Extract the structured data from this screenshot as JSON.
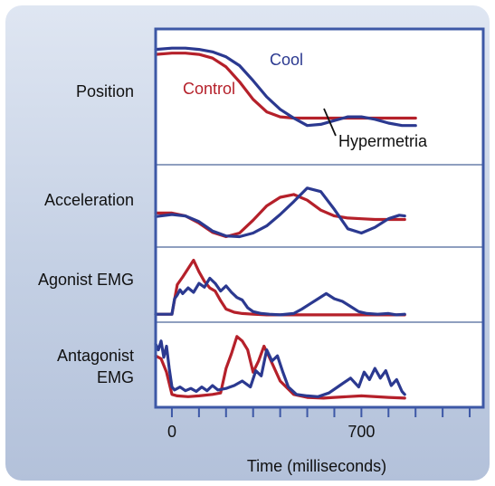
{
  "chart_data": {
    "type": "line",
    "xlabel": "Time (milliseconds)",
    "x_ticks": [
      {
        "value": 0,
        "label": "0"
      },
      {
        "value": 100,
        "label": ""
      },
      {
        "value": 200,
        "label": ""
      },
      {
        "value": 300,
        "label": ""
      },
      {
        "value": 400,
        "label": ""
      },
      {
        "value": 500,
        "label": ""
      },
      {
        "value": 600,
        "label": ""
      },
      {
        "value": 700,
        "label": "700"
      },
      {
        "value": 800,
        "label": ""
      },
      {
        "value": 900,
        "label": ""
      },
      {
        "value": 1000,
        "label": ""
      },
      {
        "value": 1100,
        "label": ""
      }
    ],
    "xlim": [
      -60,
      1150
    ],
    "colors": {
      "cool": "#2b3990",
      "control": "#b5202a"
    },
    "panels": [
      {
        "label": "Position",
        "ylim": [
          0,
          1
        ],
        "series": [
          {
            "key": "control",
            "x": [
              -60,
              0,
              50,
              100,
              150,
              200,
              250,
              300,
              350,
              400,
              450,
              500,
              550,
              600,
              700,
              800,
              900
            ],
            "y": [
              0.84,
              0.85,
              0.85,
              0.84,
              0.81,
              0.74,
              0.62,
              0.48,
              0.38,
              0.34,
              0.33,
              0.33,
              0.33,
              0.33,
              0.33,
              0.33,
              0.33
            ]
          },
          {
            "key": "cool",
            "x": [
              -60,
              0,
              50,
              100,
              150,
              200,
              250,
              300,
              350,
              400,
              450,
              500,
              550,
              600,
              650,
              700,
              750,
              800,
              850,
              900
            ],
            "y": [
              0.88,
              0.89,
              0.89,
              0.88,
              0.86,
              0.82,
              0.75,
              0.63,
              0.5,
              0.4,
              0.33,
              0.27,
              0.28,
              0.31,
              0.34,
              0.34,
              0.32,
              0.29,
              0.27,
              0.27
            ]
          }
        ],
        "annotations": [
          {
            "key": "cool",
            "text": "Cool"
          },
          {
            "key": "control",
            "text": "Control"
          },
          {
            "key": "hyper",
            "text": "Hypermetria"
          }
        ]
      },
      {
        "label": "Acceleration",
        "ylim": [
          0,
          1
        ],
        "series": [
          {
            "key": "control",
            "x": [
              -60,
              0,
              50,
              100,
              150,
              200,
              250,
              300,
              350,
              400,
              450,
              500,
              550,
              600,
              650,
              700,
              750,
              800,
              860
            ],
            "y": [
              0.4,
              0.4,
              0.36,
              0.26,
              0.13,
              0.07,
              0.12,
              0.3,
              0.5,
              0.62,
              0.66,
              0.58,
              0.44,
              0.36,
              0.33,
              0.32,
              0.31,
              0.31,
              0.31
            ]
          },
          {
            "key": "cool",
            "x": [
              -60,
              0,
              50,
              100,
              150,
              200,
              250,
              300,
              350,
              400,
              450,
              500,
              550,
              600,
              650,
              700,
              750,
              800,
              840,
              860
            ],
            "y": [
              0.35,
              0.38,
              0.36,
              0.28,
              0.15,
              0.08,
              0.07,
              0.12,
              0.22,
              0.38,
              0.56,
              0.75,
              0.7,
              0.45,
              0.18,
              0.12,
              0.2,
              0.32,
              0.37,
              0.36
            ]
          }
        ]
      },
      {
        "label": "Agonist EMG",
        "ylim": [
          0,
          1
        ],
        "series": [
          {
            "key": "control",
            "x": [
              -60,
              0,
              20,
              40,
              60,
              80,
              100,
              120,
              140,
              160,
              180,
              200,
              230,
              260,
              300,
              350,
              400,
              500,
              600,
              700,
              860
            ],
            "y": [
              0.04,
              0.04,
              0.5,
              0.62,
              0.75,
              0.88,
              0.7,
              0.55,
              0.45,
              0.4,
              0.25,
              0.12,
              0.07,
              0.05,
              0.04,
              0.03,
              0.03,
              0.03,
              0.03,
              0.03,
              0.03
            ]
          },
          {
            "key": "cool",
            "x": [
              -60,
              0,
              10,
              20,
              30,
              40,
              60,
              80,
              100,
              120,
              140,
              160,
              180,
              200,
              220,
              240,
              260,
              280,
              300,
              330,
              360,
              400,
              450,
              480,
              510,
              540,
              570,
              600,
              630,
              660,
              690,
              720,
              760,
              800,
              830,
              860
            ],
            "y": [
              0.04,
              0.04,
              0.28,
              0.34,
              0.42,
              0.36,
              0.45,
              0.38,
              0.52,
              0.46,
              0.6,
              0.52,
              0.4,
              0.48,
              0.38,
              0.3,
              0.26,
              0.14,
              0.08,
              0.05,
              0.04,
              0.03,
              0.05,
              0.12,
              0.2,
              0.28,
              0.36,
              0.28,
              0.24,
              0.16,
              0.08,
              0.05,
              0.04,
              0.05,
              0.03,
              0.04
            ]
          }
        ]
      },
      {
        "label": "Antagonist\nEMG",
        "ylim": [
          0,
          1
        ],
        "series": [
          {
            "key": "control",
            "x": [
              -60,
              -40,
              -20,
              0,
              20,
              60,
              100,
              150,
              180,
              200,
              220,
              240,
              260,
              280,
              300,
              320,
              340,
              360,
              400,
              450,
              500,
              560,
              600,
              700,
              800,
              860
            ],
            "y": [
              0.62,
              0.58,
              0.4,
              0.1,
              0.08,
              0.07,
              0.08,
              0.1,
              0.12,
              0.45,
              0.65,
              0.88,
              0.82,
              0.7,
              0.4,
              0.55,
              0.75,
              0.6,
              0.28,
              0.1,
              0.06,
              0.05,
              0.06,
              0.08,
              0.06,
              0.05
            ]
          },
          {
            "key": "cool",
            "x": [
              -60,
              -50,
              -40,
              -30,
              -20,
              -10,
              0,
              10,
              30,
              50,
              70,
              90,
              110,
              130,
              150,
              170,
              200,
              230,
              260,
              290,
              310,
              330,
              350,
              370,
              390,
              410,
              430,
              460,
              500,
              540,
              580,
              620,
              660,
              690,
              710,
              730,
              750,
              770,
              790,
              810,
              830,
              850,
              860
            ],
            "y": [
              0.78,
              0.7,
              0.82,
              0.6,
              0.75,
              0.45,
              0.2,
              0.16,
              0.2,
              0.15,
              0.18,
              0.14,
              0.2,
              0.15,
              0.22,
              0.16,
              0.18,
              0.22,
              0.28,
              0.2,
              0.42,
              0.35,
              0.7,
              0.55,
              0.62,
              0.4,
              0.2,
              0.1,
              0.08,
              0.07,
              0.12,
              0.22,
              0.32,
              0.2,
              0.4,
              0.3,
              0.45,
              0.32,
              0.42,
              0.22,
              0.3,
              0.14,
              0.1
            ]
          }
        ]
      }
    ]
  }
}
